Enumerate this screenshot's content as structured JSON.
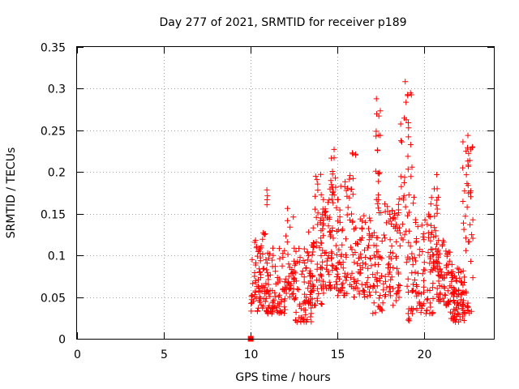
{
  "chart_data": {
    "type": "scatter",
    "title": "Day 277 of 2021, SRMTID for receiver p189",
    "xlabel": "GPS time / hours",
    "ylabel": "SRMTID / TECUs",
    "xlim": [
      0,
      24
    ],
    "ylim": [
      0,
      0.35
    ],
    "xticks": [
      0,
      5,
      10,
      15,
      20
    ],
    "yticks": [
      0,
      0.05,
      0.1,
      0.15,
      0.2,
      0.25,
      0.3,
      0.35
    ],
    "xtick_labels": [
      "0",
      "5",
      "10",
      "15",
      "20"
    ],
    "ytick_labels": [
      "0",
      "0.05",
      "0.1",
      "0.15",
      "0.2",
      "0.25",
      "0.3",
      "0.35"
    ],
    "grid": true,
    "marker": "plus",
    "color": "#ff0000",
    "zero_marker": {
      "x": 10.0,
      "y": 0.0
    },
    "clusters": [
      {
        "x": [
          10.0,
          11.0
        ],
        "y": [
          0.03,
          0.13
        ],
        "n": 90
      },
      {
        "x": [
          10.8,
          11.1
        ],
        "y": [
          0.16,
          0.18
        ],
        "n": 4
      },
      {
        "x": [
          11.0,
          12.0
        ],
        "y": [
          0.03,
          0.11
        ],
        "n": 70
      },
      {
        "x": [
          12.0,
          12.5
        ],
        "y": [
          0.05,
          0.16
        ],
        "n": 35
      },
      {
        "x": [
          12.5,
          13.5
        ],
        "y": [
          0.02,
          0.11
        ],
        "n": 70
      },
      {
        "x": [
          13.3,
          14.2
        ],
        "y": [
          0.04,
          0.14
        ],
        "n": 60
      },
      {
        "x": [
          13.7,
          14.3
        ],
        "y": [
          0.14,
          0.2
        ],
        "n": 14
      },
      {
        "x": [
          14.0,
          15.0
        ],
        "y": [
          0.06,
          0.17
        ],
        "n": 70
      },
      {
        "x": [
          14.5,
          14.9
        ],
        "y": [
          0.17,
          0.23
        ],
        "n": 16
      },
      {
        "x": [
          15.0,
          16.0
        ],
        "y": [
          0.05,
          0.2
        ],
        "n": 75
      },
      {
        "x": [
          15.8,
          16.2
        ],
        "y": [
          0.22,
          0.23
        ],
        "n": 4
      },
      {
        "x": [
          16.0,
          17.0
        ],
        "y": [
          0.05,
          0.15
        ],
        "n": 65
      },
      {
        "x": [
          17.0,
          17.7
        ],
        "y": [
          0.03,
          0.13
        ],
        "n": 45
      },
      {
        "x": [
          17.2,
          17.5
        ],
        "y": [
          0.15,
          0.29
        ],
        "n": 22
      },
      {
        "x": [
          17.7,
          18.6
        ],
        "y": [
          0.04,
          0.17
        ],
        "n": 70
      },
      {
        "x": [
          18.6,
          19.4
        ],
        "y": [
          0.09,
          0.32
        ],
        "n": 45
      },
      {
        "x": [
          19.0,
          19.4
        ],
        "y": [
          0.02,
          0.1
        ],
        "n": 15
      },
      {
        "x": [
          19.3,
          20.5
        ],
        "y": [
          0.03,
          0.15
        ],
        "n": 80
      },
      {
        "x": [
          20.3,
          20.8
        ],
        "y": [
          0.08,
          0.2
        ],
        "n": 30
      },
      {
        "x": [
          20.5,
          21.5
        ],
        "y": [
          0.04,
          0.12
        ],
        "n": 70
      },
      {
        "x": [
          21.5,
          22.3
        ],
        "y": [
          0.02,
          0.09
        ],
        "n": 75
      },
      {
        "x": [
          22.2,
          22.8
        ],
        "y": [
          0.03,
          0.25
        ],
        "n": 55
      }
    ],
    "seed": 277
  }
}
